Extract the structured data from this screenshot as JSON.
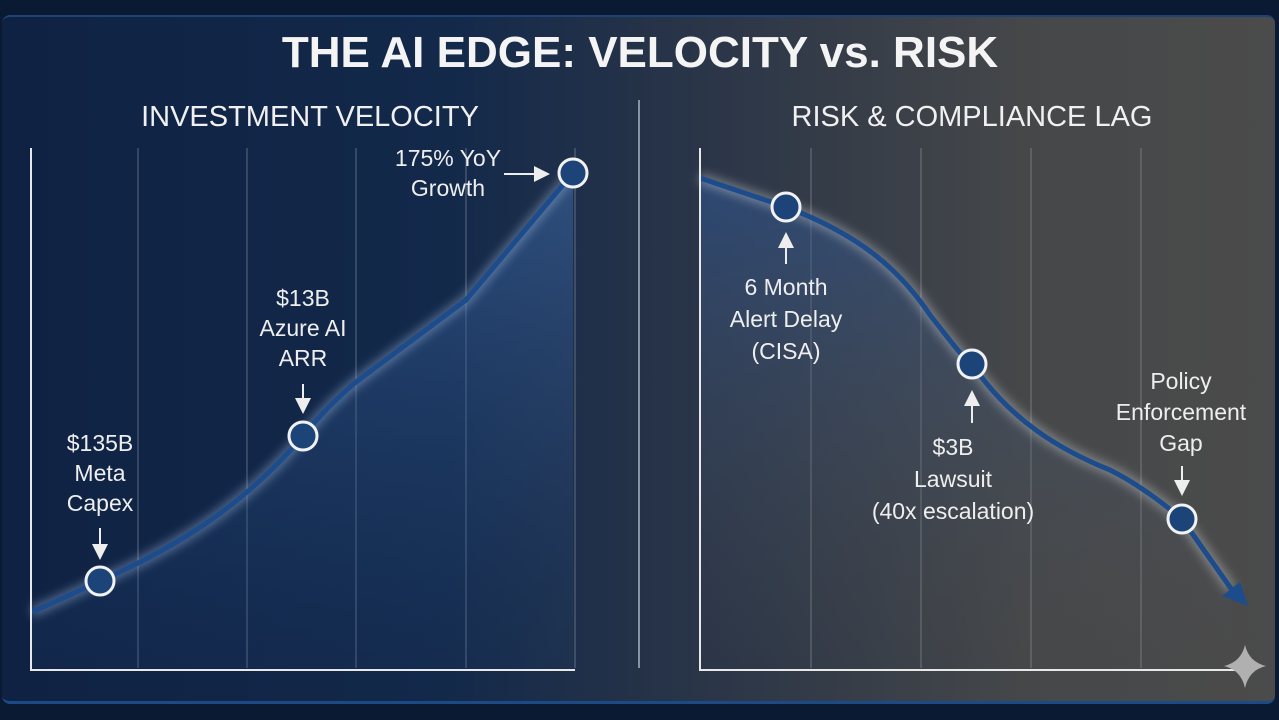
{
  "title": "THE AI EDGE: VELOCITY vs. RISK",
  "chart_data": [
    {
      "type": "line",
      "title": "INVESTMENT VELOCITY",
      "trend": "rising",
      "grid": true,
      "line_color": "#1c4c8c",
      "annotations": [
        {
          "lines": [
            "$135B",
            "Meta",
            "Capex"
          ],
          "arrow": "down"
        },
        {
          "lines": [
            "$13B",
            "Azure AI",
            "ARR"
          ],
          "arrow": "down"
        },
        {
          "lines": [
            "175% YoY",
            "Growth"
          ],
          "arrow": "right"
        }
      ]
    },
    {
      "type": "line",
      "title": "RISK & COMPLIANCE LAG",
      "trend": "falling",
      "grid": true,
      "line_color": "#1c4c8c",
      "annotations": [
        {
          "lines": [
            "6 Month",
            "Alert Delay",
            "(CISA)"
          ],
          "arrow": "up"
        },
        {
          "lines": [
            "$3B",
            "Lawsuit",
            "(40x escalation)"
          ],
          "arrow": "up"
        },
        {
          "lines": [
            "Policy",
            "Enforcement",
            "Gap"
          ],
          "arrow": "down"
        }
      ]
    }
  ],
  "watermark_icon": "sparkle-icon"
}
